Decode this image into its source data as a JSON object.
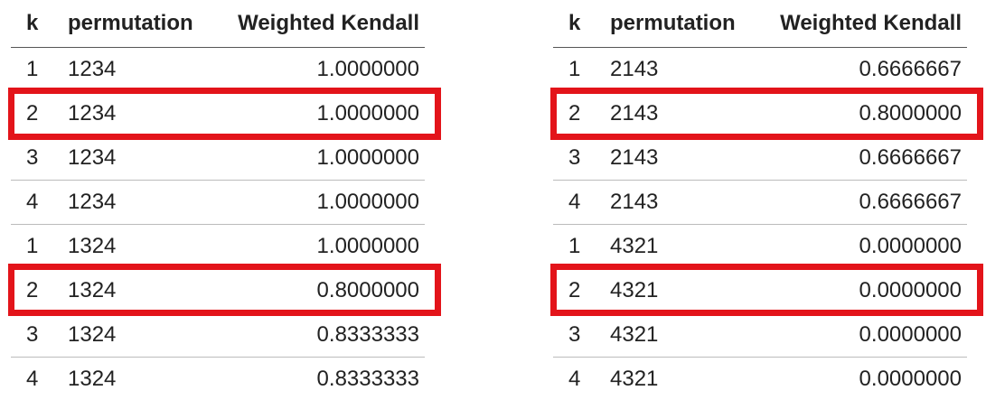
{
  "columns": [
    "k",
    "permutation",
    "Weighted Kendall"
  ],
  "tables": [
    {
      "rows": [
        {
          "k": "1",
          "permutation": "1234",
          "weighted_kendall": "1.0000000"
        },
        {
          "k": "2",
          "permutation": "1234",
          "weighted_kendall": "1.0000000"
        },
        {
          "k": "3",
          "permutation": "1234",
          "weighted_kendall": "1.0000000"
        },
        {
          "k": "4",
          "permutation": "1234",
          "weighted_kendall": "1.0000000"
        },
        {
          "k": "1",
          "permutation": "1324",
          "weighted_kendall": "1.0000000"
        },
        {
          "k": "2",
          "permutation": "1324",
          "weighted_kendall": "0.8000000"
        },
        {
          "k": "3",
          "permutation": "1324",
          "weighted_kendall": "0.8333333"
        },
        {
          "k": "4",
          "permutation": "1324",
          "weighted_kendall": "0.8333333"
        }
      ]
    },
    {
      "rows": [
        {
          "k": "1",
          "permutation": "2143",
          "weighted_kendall": "0.6666667"
        },
        {
          "k": "2",
          "permutation": "2143",
          "weighted_kendall": "0.8000000"
        },
        {
          "k": "3",
          "permutation": "2143",
          "weighted_kendall": "0.6666667"
        },
        {
          "k": "4",
          "permutation": "2143",
          "weighted_kendall": "0.6666667"
        },
        {
          "k": "1",
          "permutation": "4321",
          "weighted_kendall": "0.0000000"
        },
        {
          "k": "2",
          "permutation": "4321",
          "weighted_kendall": "0.0000000"
        },
        {
          "k": "3",
          "permutation": "4321",
          "weighted_kendall": "0.0000000"
        },
        {
          "k": "4",
          "permutation": "4321",
          "weighted_kendall": "0.0000000"
        }
      ]
    }
  ],
  "highlight": {
    "color": "#e3141a",
    "highlighted_k": "2"
  }
}
